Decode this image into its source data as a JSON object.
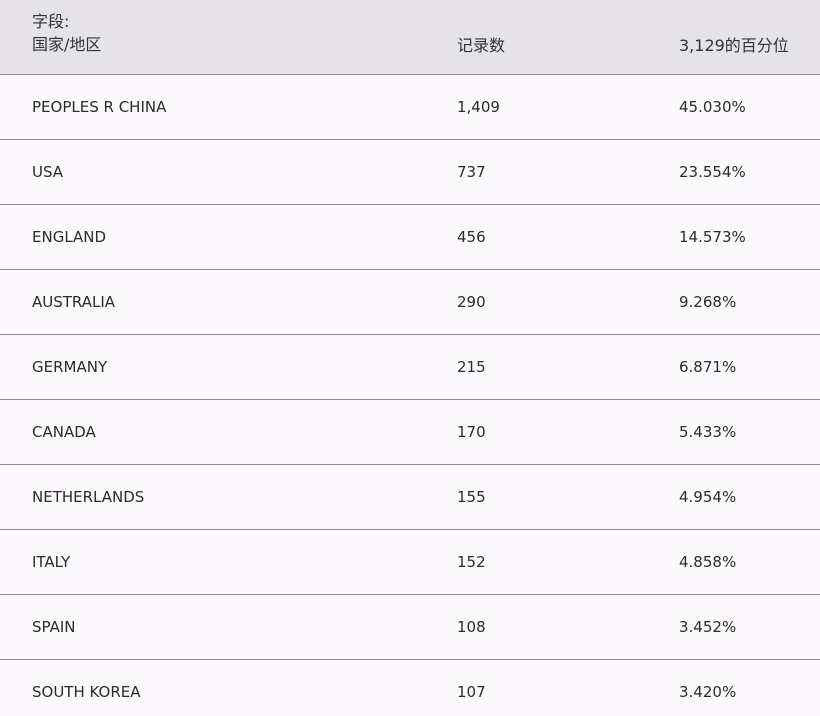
{
  "header": {
    "field_label": "字段:",
    "col1": "国家/地区",
    "col2": "记录数",
    "col3": "3,129的百分位"
  },
  "rows": [
    {
      "country": "PEOPLES R CHINA",
      "count": "1,409",
      "percent": "45.030%"
    },
    {
      "country": "USA",
      "count": "737",
      "percent": "23.554%"
    },
    {
      "country": "ENGLAND",
      "count": "456",
      "percent": "14.573%"
    },
    {
      "country": "AUSTRALIA",
      "count": "290",
      "percent": "9.268%"
    },
    {
      "country": "GERMANY",
      "count": "215",
      "percent": "6.871%"
    },
    {
      "country": "CANADA",
      "count": "170",
      "percent": "5.433%"
    },
    {
      "country": "NETHERLANDS",
      "count": "155",
      "percent": "4.954%"
    },
    {
      "country": "ITALY",
      "count": "152",
      "percent": "4.858%"
    },
    {
      "country": "SPAIN",
      "count": "108",
      "percent": "3.452%"
    },
    {
      "country": "SOUTH KOREA",
      "count": "107",
      "percent": "3.420%"
    }
  ]
}
